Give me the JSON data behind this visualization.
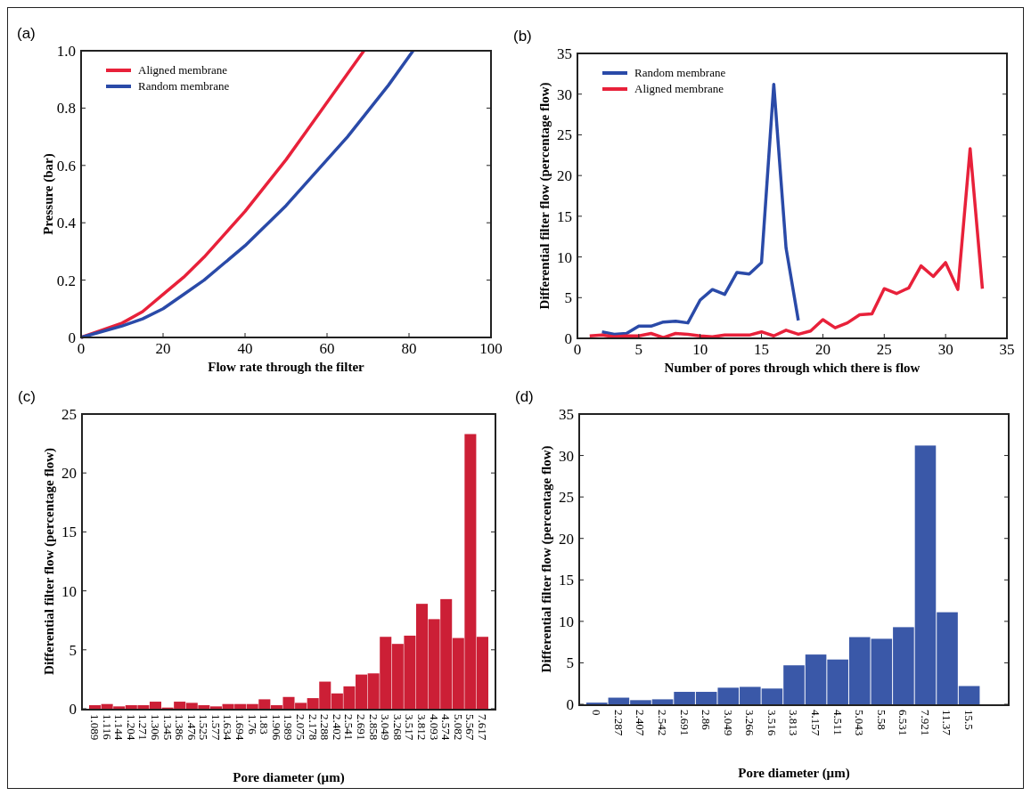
{
  "chart_data": [
    {
      "type": "line",
      "title": "(a)",
      "xlabel": "Flow rate through the filter",
      "ylabel": "Pressure (bar)",
      "xlim": [
        0,
        100
      ],
      "xticks": [
        0,
        20,
        40,
        60,
        80,
        100
      ],
      "ylim": [
        0,
        1
      ],
      "yticks": [
        0,
        0.2,
        0.4,
        0.6,
        0.8,
        {
          "value": 1,
          "label": "1.0"
        }
      ],
      "legend": "top left",
      "grid": false,
      "series": [
        {
          "name": "Aligned membrane",
          "color": "#e8213a",
          "x": [
            0,
            5,
            10,
            15,
            20,
            25,
            30,
            35,
            40,
            45,
            50,
            55,
            60,
            65,
            69
          ],
          "values": [
            0,
            0.025,
            0.05,
            0.09,
            0.15,
            0.21,
            0.28,
            0.36,
            0.44,
            0.53,
            0.62,
            0.72,
            0.82,
            0.92,
            1.0
          ]
        },
        {
          "name": "Random membrane",
          "color": "#2a4aa8",
          "x": [
            0,
            5,
            10,
            15,
            20,
            25,
            30,
            35,
            40,
            45,
            50,
            55,
            60,
            65,
            70,
            75,
            81
          ],
          "values": [
            0,
            0.02,
            0.04,
            0.065,
            0.1,
            0.15,
            0.2,
            0.26,
            0.32,
            0.39,
            0.46,
            0.54,
            0.62,
            0.7,
            0.79,
            0.88,
            1.0
          ]
        }
      ]
    },
    {
      "type": "line",
      "title": "(b)",
      "xlabel": "Number of pores through which there is flow",
      "ylabel": "Differential filter flow (percentage flow)",
      "xlim": [
        0,
        35
      ],
      "xticks": [
        0,
        5,
        10,
        15,
        20,
        25,
        30,
        35
      ],
      "ylim": [
        0,
        35
      ],
      "yticks": [
        0,
        5,
        10,
        15,
        20,
        25,
        30,
        35
      ],
      "legend": "top left",
      "grid": false,
      "series": [
        {
          "name": "Random membrane",
          "color": "#2a4aa8",
          "x": [
            2,
            3,
            4,
            5,
            6,
            7,
            8,
            9,
            10,
            11,
            12,
            13,
            14,
            15,
            16,
            17,
            18
          ],
          "values": [
            0.8,
            0.5,
            0.6,
            1.5,
            1.5,
            2.0,
            2.1,
            1.9,
            4.7,
            6.0,
            5.4,
            8.1,
            7.9,
            9.3,
            31.2,
            11.1,
            2.2
          ]
        },
        {
          "name": "Aligned membrane",
          "color": "#e8213a",
          "x": [
            1,
            2,
            3,
            4,
            5,
            6,
            7,
            8,
            9,
            10,
            11,
            12,
            13,
            14,
            15,
            16,
            17,
            18,
            19,
            20,
            21,
            22,
            23,
            24,
            25,
            26,
            27,
            28,
            29,
            30,
            31,
            32,
            33
          ],
          "values": [
            0.3,
            0.4,
            0.2,
            0.3,
            0.3,
            0.6,
            0.1,
            0.6,
            0.5,
            0.3,
            0.2,
            0.4,
            0.4,
            0.4,
            0.8,
            0.3,
            1.0,
            0.5,
            0.9,
            2.3,
            1.3,
            1.9,
            2.9,
            3.0,
            6.1,
            5.5,
            6.2,
            8.9,
            7.6,
            9.3,
            6.0,
            23.3,
            6.1
          ]
        }
      ]
    },
    {
      "type": "bar",
      "title": "(c)",
      "xlabel": "Pore diameter (µm)",
      "ylabel": "Differential filter flow (percentage flow)",
      "ylim": [
        0,
        25
      ],
      "yticks": [
        0,
        5,
        10,
        15,
        20,
        25
      ],
      "grid": false,
      "color": "#cc1f36",
      "categories": [
        "1.089",
        "1.116",
        "1.144",
        "1.204",
        "1.271",
        "1.306",
        "1.345",
        "1.386",
        "1.476",
        "1.525",
        "1.577",
        "1.634",
        "1.694",
        "1.76",
        "1.83",
        "1.906",
        "1.989",
        "2.075",
        "2.178",
        "2.288",
        "2.402",
        "2.541",
        "2.691",
        "2.858",
        "3.049",
        "3.268",
        "3.517",
        "3.812",
        "4.093",
        "4.574",
        "5.082",
        "5.567",
        "7.617"
      ],
      "values": [
        0.3,
        0.4,
        0.2,
        0.3,
        0.3,
        0.6,
        0.1,
        0.6,
        0.5,
        0.3,
        0.2,
        0.4,
        0.4,
        0.4,
        0.8,
        0.3,
        1.0,
        0.5,
        0.9,
        2.3,
        1.3,
        1.9,
        2.9,
        3.0,
        6.1,
        5.5,
        6.2,
        8.9,
        7.6,
        9.3,
        6.0,
        23.3,
        6.1
      ]
    },
    {
      "type": "bar",
      "title": "(d)",
      "xlabel": "Pore diameter (µm)",
      "ylabel": "Differential filter flow (percentage flow)",
      "ylim": [
        0,
        35
      ],
      "yticks": [
        0,
        5,
        10,
        15,
        20,
        25,
        30,
        35
      ],
      "grid": false,
      "color": "#3a58a8",
      "categories": [
        "0",
        "2.287",
        "2.407",
        "2.542",
        "2.691",
        "2.86",
        "3.049",
        "3.266",
        "3.516",
        "3.813",
        "4.157",
        "4.511",
        "5.043",
        "5.58",
        "6.531",
        "7.921",
        "11.37",
        "15.5",
        null
      ],
      "values": [
        0.2,
        0.8,
        0.5,
        0.6,
        1.5,
        1.5,
        2.0,
        2.1,
        1.9,
        4.7,
        6.0,
        5.4,
        8.1,
        7.9,
        9.3,
        31.2,
        11.1,
        2.2,
        null
      ]
    }
  ]
}
